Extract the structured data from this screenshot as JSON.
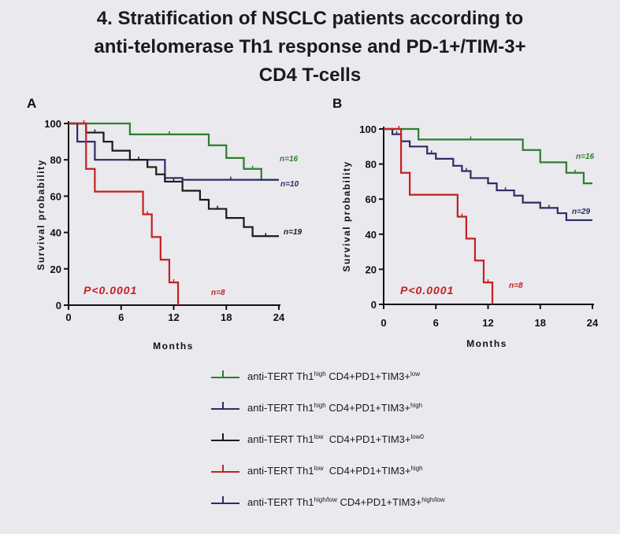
{
  "title": {
    "line1": "4. Stratification of NSCLC patients according to",
    "line2": "anti-telomerase Th1 response and PD-1+/TIM-3+",
    "line3": "CD4 T-cells"
  },
  "colors": {
    "green": "#2f7d2f",
    "navy": "#2c2c64",
    "black": "#1a1a1a",
    "red": "#c62020"
  },
  "legend": [
    {
      "color": "#2f7d2f",
      "prefix": "anti-TERT Th1",
      "sup1": "high",
      "mid": " CD4+PD1+TIM3+",
      "sup2": "low"
    },
    {
      "color": "#2c2c64",
      "prefix": "anti-TERT Th1",
      "sup1": "high",
      "mid": " CD4+PD1+TIM3+",
      "sup2": "high"
    },
    {
      "color": "#1a1a1a",
      "prefix": "anti-TERT Th1",
      "sup1": "low",
      "mid": "  CD4+PD1+TIM3+",
      "sup2": "low0"
    },
    {
      "color": "#c62020",
      "prefix": "anti-TERT Th1",
      "sup1": "low",
      "mid": "  CD4+PD1+TIM3+",
      "sup2": "high"
    },
    {
      "color": "#2c2c64",
      "prefix": "anti-TERT Th1",
      "sup1": "high/low",
      "mid": " CD4+PD1+TIM3+",
      "sup2": "high/low"
    }
  ],
  "chart_data": [
    {
      "type": "line",
      "panel": "A",
      "xlabel": "Months",
      "ylabel": "Survival probability",
      "xlim": [
        0,
        24
      ],
      "ylim": [
        0,
        100
      ],
      "xticks": [
        0,
        6,
        12,
        18,
        24
      ],
      "yticks": [
        0,
        20,
        40,
        60,
        80,
        100
      ],
      "pvalue": "P<0.0001",
      "series": [
        {
          "color": "#2f7d2f",
          "n_label": "n=16",
          "x": [
            0,
            7,
            16,
            18,
            20,
            22,
            23,
            24
          ],
          "y": [
            100,
            94,
            88,
            81,
            75,
            69,
            69,
            69
          ]
        },
        {
          "color": "#2c2c64",
          "n_label": "n=10",
          "x": [
            0,
            1,
            3,
            11,
            13,
            24
          ],
          "y": [
            100,
            90,
            80,
            70,
            69,
            69
          ]
        },
        {
          "color": "#1a1a1a",
          "n_label": "n=19",
          "x": [
            0,
            2,
            4,
            5,
            7,
            9,
            10,
            11,
            13,
            15,
            16,
            18,
            20,
            21,
            24
          ],
          "y": [
            100,
            95,
            90,
            85,
            80,
            76,
            72,
            68,
            63,
            58,
            53,
            48,
            43,
            38,
            38
          ]
        },
        {
          "color": "#c62020",
          "n_label": "n=8",
          "x": [
            0,
            1.5,
            2,
            3,
            8.5,
            9.5,
            10.5,
            11.5,
            12.5
          ],
          "y": [
            100,
            100,
            75,
            62.5,
            50,
            37.5,
            25,
            12.5,
            0
          ]
        }
      ]
    },
    {
      "type": "line",
      "panel": "B",
      "xlabel": "Months",
      "ylabel": "Survival probability",
      "xlim": [
        0,
        24
      ],
      "ylim": [
        0,
        100
      ],
      "xticks": [
        0,
        6,
        12,
        18,
        24
      ],
      "yticks": [
        0,
        20,
        40,
        60,
        80,
        100
      ],
      "pvalue": "P<0.0001",
      "series": [
        {
          "color": "#2f7d2f",
          "n_label": "n=16",
          "x": [
            0,
            4,
            16,
            18,
            21,
            23,
            24
          ],
          "y": [
            100,
            94,
            88,
            81,
            75,
            69,
            69
          ]
        },
        {
          "color": "#2c2c64",
          "n_label": "n=29",
          "x": [
            0,
            1,
            2,
            3,
            5,
            6,
            8,
            9,
            10,
            12,
            13,
            15,
            16,
            18,
            20,
            21,
            24
          ],
          "y": [
            100,
            97,
            93,
            90,
            86,
            83,
            79,
            76,
            72,
            69,
            65,
            62,
            58,
            55,
            52,
            48,
            48
          ]
        },
        {
          "color": "#c62020",
          "n_label": "n=8",
          "x": [
            0,
            1.5,
            2,
            3,
            8.5,
            9.5,
            10.5,
            11.5,
            12.5
          ],
          "y": [
            100,
            100,
            75,
            62.5,
            50,
            37.5,
            25,
            12.5,
            0
          ]
        }
      ]
    }
  ]
}
